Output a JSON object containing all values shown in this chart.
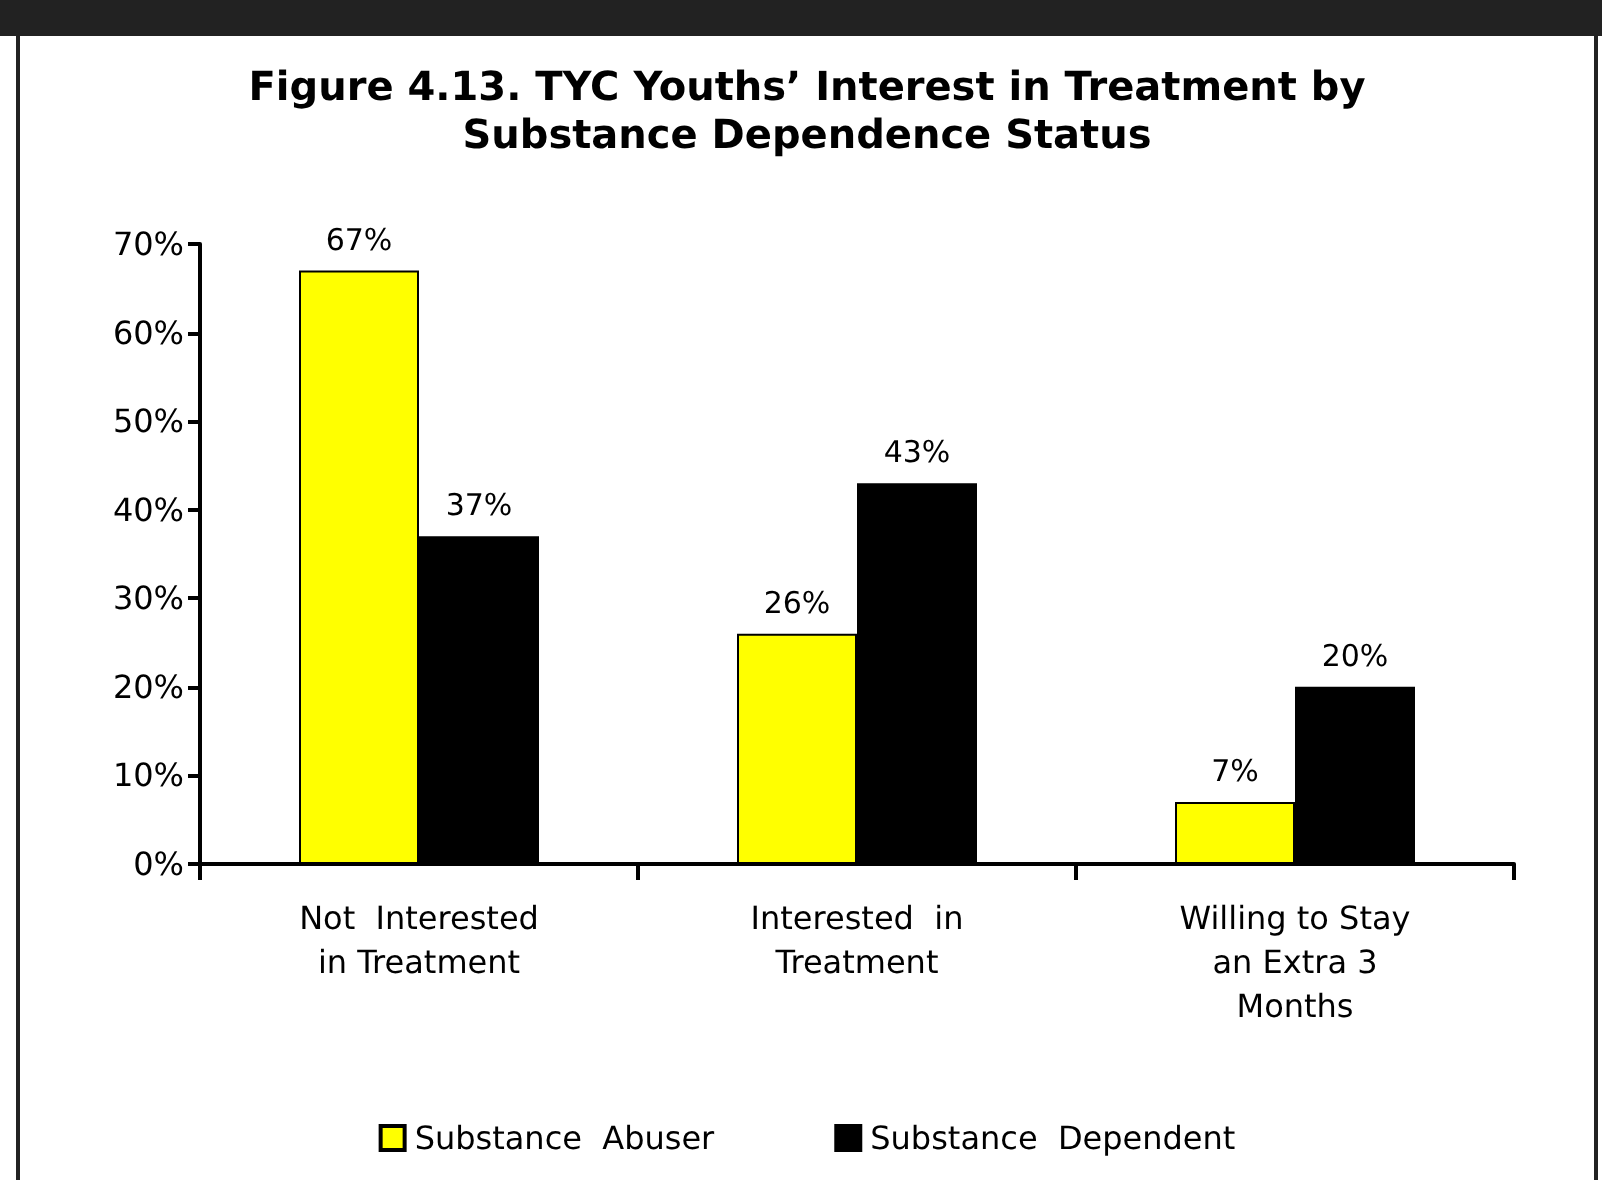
{
  "chart_data": {
    "type": "bar",
    "title": "Figure 4.13. TYC Youths’ Interest in Treatment by\nSubstance Dependence Status",
    "categories": [
      "Not  Interested\nin Treatment",
      "Interested  in\nTreatment",
      "Willing to Stay\nan Extra 3\nMonths"
    ],
    "series": [
      {
        "name": "Substance  Abuser",
        "color": "#ffff00",
        "values": [
          67,
          26,
          7
        ],
        "value_labels": [
          "67%",
          "26%",
          "7%"
        ]
      },
      {
        "name": "Substance  Dependent",
        "color": "#000000",
        "values": [
          37,
          43,
          20
        ],
        "value_labels": [
          "37%",
          "43%",
          "20%"
        ]
      }
    ],
    "ylim": [
      0,
      70
    ],
    "yticks": [
      {
        "value": 0,
        "label": "0%"
      },
      {
        "value": 10,
        "label": "10%"
      },
      {
        "value": 20,
        "label": "20%"
      },
      {
        "value": 30,
        "label": "30%"
      },
      {
        "value": 40,
        "label": "40%"
      },
      {
        "value": 50,
        "label": "50%"
      },
      {
        "value": 60,
        "label": "60%"
      },
      {
        "value": 70,
        "label": "70%"
      }
    ],
    "grid": false,
    "legend": "bottom"
  }
}
